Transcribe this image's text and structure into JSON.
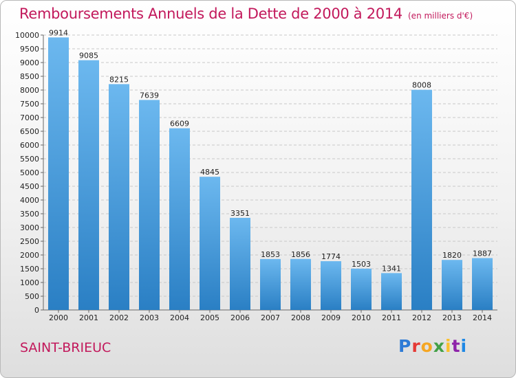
{
  "title": "Remboursements Annuels de la Dette de 2000 à 2014",
  "title_unit": "(en milliers d'€)",
  "city": "SAINT-BRIEUC",
  "logo": {
    "letters": [
      "P",
      "r",
      "o",
      "x",
      "i",
      "t",
      "i"
    ],
    "colors": [
      "#2e7bd6",
      "#e53935",
      "#f5a623",
      "#43a047",
      "#fbc02d",
      "#8e24aa",
      "#1e88e5"
    ]
  },
  "colors": {
    "title": "#c2185b",
    "bar_light": "#6cb8ef",
    "bar_dark": "#2a7fc4",
    "grid": "#c8c8c8"
  },
  "chart_data": {
    "type": "bar",
    "title": "Remboursements Annuels de la Dette de 2000 à 2014",
    "ylabel": "",
    "xlabel": "",
    "ylim": [
      0,
      10000
    ],
    "grid": true,
    "categories": [
      "2000",
      "2001",
      "2002",
      "2003",
      "2004",
      "2005",
      "2006",
      "2007",
      "2008",
      "2009",
      "2010",
      "2011",
      "2012",
      "2013",
      "2014"
    ],
    "values": [
      9914,
      9085,
      8215,
      7639,
      6609,
      4845,
      3351,
      1853,
      1856,
      1774,
      1503,
      1341,
      8008,
      1820,
      1887
    ],
    "yticks": [
      0,
      500,
      1000,
      1500,
      2000,
      2500,
      3000,
      3500,
      4000,
      4500,
      5000,
      5500,
      6000,
      6500,
      7000,
      7500,
      8000,
      8500,
      9000,
      9500,
      10000
    ]
  }
}
